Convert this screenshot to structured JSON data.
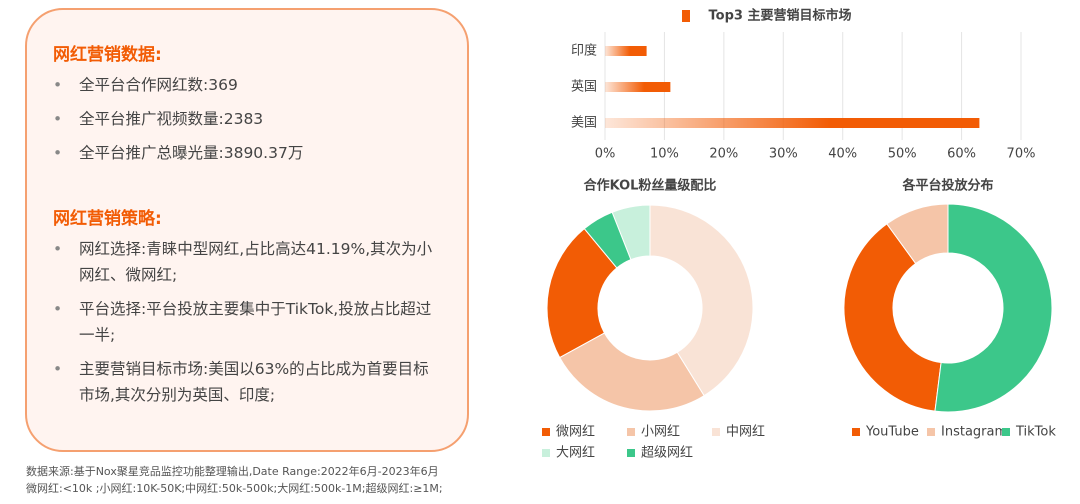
{
  "panel": {
    "heading1": "网红营销数据:",
    "items1": [
      "全平台合作网红数:369",
      "全平台推广视频数量:2383",
      "全平台推广总曝光量:3890.37万"
    ],
    "heading2": "网红营销策略:",
    "items2": [
      "网红选择:青睐中型网红,占比高达41.19%,其次为小网红、微网红;",
      "平台选择:平台投放主要集中于TikTok,投放占比超过一半;",
      "主要营销目标市场:美国以63%的占比成为首要目标市场,其次分别为英国、印度;"
    ]
  },
  "chart_data": [
    {
      "type": "bar",
      "title": "Top3 主要营销目标市场",
      "categories": [
        "印度",
        "英国",
        "美国"
      ],
      "values": [
        7,
        11,
        63
      ],
      "color": "#f25c05",
      "xlim": [
        0,
        70
      ],
      "xticks": [
        {
          "value": 0,
          "label": "0%"
        },
        {
          "value": 10,
          "label": "10%"
        },
        {
          "value": 20,
          "label": "20%"
        },
        {
          "value": 30,
          "label": "30%"
        },
        {
          "value": 40,
          "label": "40%"
        },
        {
          "value": 50,
          "label": "50%"
        },
        {
          "value": 60,
          "label": "60%"
        },
        {
          "value": 70,
          "label": "70%"
        }
      ],
      "grid": true
    },
    {
      "type": "donut",
      "title": "合作KOL粉丝量级配比",
      "categories": [
        "微网红",
        "小网红",
        "中网红",
        "大网红",
        "超级网红"
      ],
      "values": [
        22,
        25.81,
        41.19,
        6,
        5
      ],
      "colors": [
        "#f25c05",
        "#f5c5a8",
        "#f9e3d6",
        "#c8f0dc",
        "#3cc78a"
      ]
    },
    {
      "type": "donut",
      "title": "各平台投放分布",
      "categories": [
        "YouTube",
        "Instagram",
        "TikTok"
      ],
      "values": [
        38,
        10,
        52
      ],
      "colors": [
        "#f25c05",
        "#f5c5a8",
        "#3cc78a"
      ]
    }
  ],
  "footnote": [
    "数据来源:基于Nox聚星竞品监控功能整理输出,Date Range:2022年6月-2023年6月",
    "微网红:<10k ;小网红:10K-50K;中网红:50k-500k;大网红:500k-1M;超级网红:≥1M;"
  ]
}
